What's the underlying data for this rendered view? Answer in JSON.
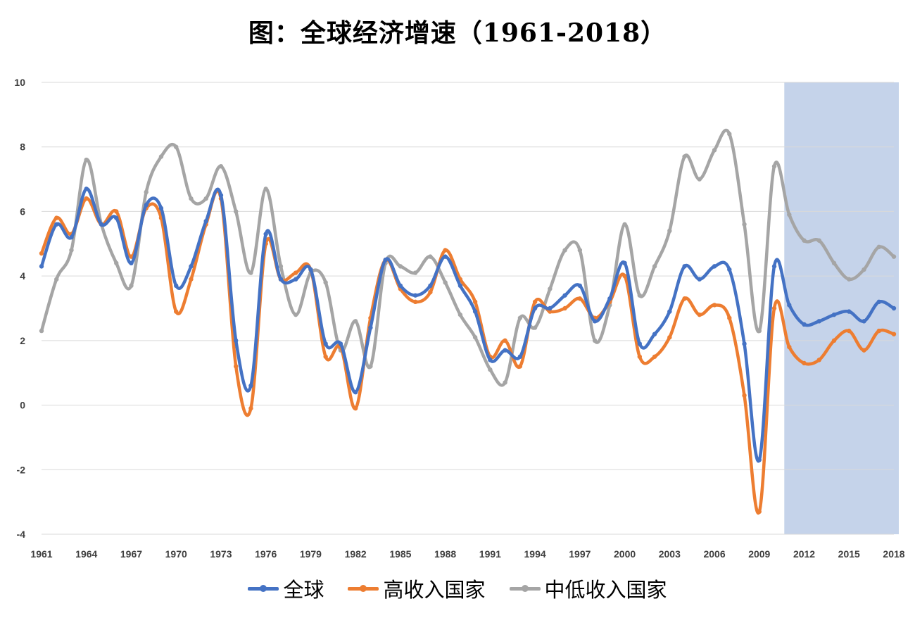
{
  "chart_data": {
    "type": "line",
    "title": "图：全球经济增速（1961-2018）",
    "xlabel": "",
    "ylabel": "",
    "ylim": [
      -4,
      10
    ],
    "yticks": [
      -4,
      -2,
      0,
      2,
      4,
      6,
      8,
      10
    ],
    "grid": "horizontal",
    "legend_position": "bottom",
    "x": [
      1961,
      1962,
      1963,
      1964,
      1965,
      1966,
      1967,
      1968,
      1969,
      1970,
      1971,
      1972,
      1973,
      1974,
      1975,
      1976,
      1977,
      1978,
      1979,
      1980,
      1981,
      1982,
      1983,
      1984,
      1985,
      1986,
      1987,
      1988,
      1989,
      1990,
      1991,
      1992,
      1993,
      1994,
      1995,
      1996,
      1997,
      1998,
      1999,
      2000,
      2001,
      2002,
      2003,
      2004,
      2005,
      2006,
      2007,
      2008,
      2009,
      2010,
      2011,
      2012,
      2013,
      2014,
      2015,
      2016,
      2017,
      2018
    ],
    "xticks": [
      1961,
      1964,
      1967,
      1970,
      1973,
      1976,
      1979,
      1982,
      1985,
      1988,
      1991,
      1994,
      1997,
      2000,
      2003,
      2006,
      2009,
      2012,
      2015,
      2018
    ],
    "highlight": {
      "from": 2011,
      "to": 2018,
      "color": "#c5d3ea"
    },
    "series": [
      {
        "name": "全球",
        "color": "#4472c4",
        "values": [
          4.3,
          5.6,
          5.2,
          6.7,
          5.6,
          5.8,
          4.4,
          6.2,
          6.1,
          3.7,
          4.3,
          5.7,
          6.5,
          2.0,
          0.6,
          5.3,
          3.9,
          3.9,
          4.2,
          1.9,
          1.9,
          0.4,
          2.4,
          4.5,
          3.7,
          3.4,
          3.7,
          4.6,
          3.7,
          2.9,
          1.4,
          1.7,
          1.5,
          3.0,
          3.0,
          3.4,
          3.7,
          2.6,
          3.3,
          4.4,
          1.9,
          2.2,
          2.9,
          4.3,
          3.9,
          4.3,
          4.2,
          1.9,
          -1.7,
          4.3,
          3.1,
          2.5,
          2.6,
          2.8,
          2.9,
          2.6,
          3.2,
          3.0
        ]
      },
      {
        "name": "高收入国家",
        "color": "#ed7d31",
        "values": [
          4.7,
          5.8,
          5.3,
          6.4,
          5.6,
          6.0,
          4.6,
          6.1,
          5.8,
          2.9,
          3.9,
          5.6,
          6.4,
          1.2,
          -0.1,
          5.0,
          3.9,
          4.1,
          4.2,
          1.5,
          1.8,
          -0.1,
          2.7,
          4.5,
          3.6,
          3.2,
          3.5,
          4.8,
          3.9,
          3.2,
          1.5,
          2.0,
          1.2,
          3.2,
          2.9,
          3.0,
          3.3,
          2.7,
          3.2,
          4.0,
          1.5,
          1.5,
          2.1,
          3.3,
          2.8,
          3.1,
          2.7,
          0.3,
          -3.3,
          3.0,
          1.8,
          1.3,
          1.4,
          2.0,
          2.3,
          1.7,
          2.3,
          2.2
        ]
      },
      {
        "name": "中低收入国家",
        "color": "#a5a5a5",
        "values": [
          2.3,
          3.9,
          4.8,
          7.6,
          5.6,
          4.4,
          3.7,
          6.6,
          7.7,
          8.0,
          6.4,
          6.4,
          7.4,
          6.0,
          4.1,
          6.7,
          4.3,
          2.8,
          4.1,
          3.8,
          1.7,
          2.6,
          1.2,
          4.4,
          4.3,
          4.1,
          4.6,
          3.8,
          2.8,
          2.1,
          1.1,
          0.7,
          2.7,
          2.4,
          3.6,
          4.8,
          4.8,
          2.0,
          3.1,
          5.6,
          3.4,
          4.3,
          5.4,
          7.7,
          7.0,
          7.9,
          8.4,
          5.6,
          2.3,
          7.4,
          5.9,
          5.1,
          5.1,
          4.4,
          3.9,
          4.2,
          4.9,
          4.6
        ]
      }
    ]
  }
}
